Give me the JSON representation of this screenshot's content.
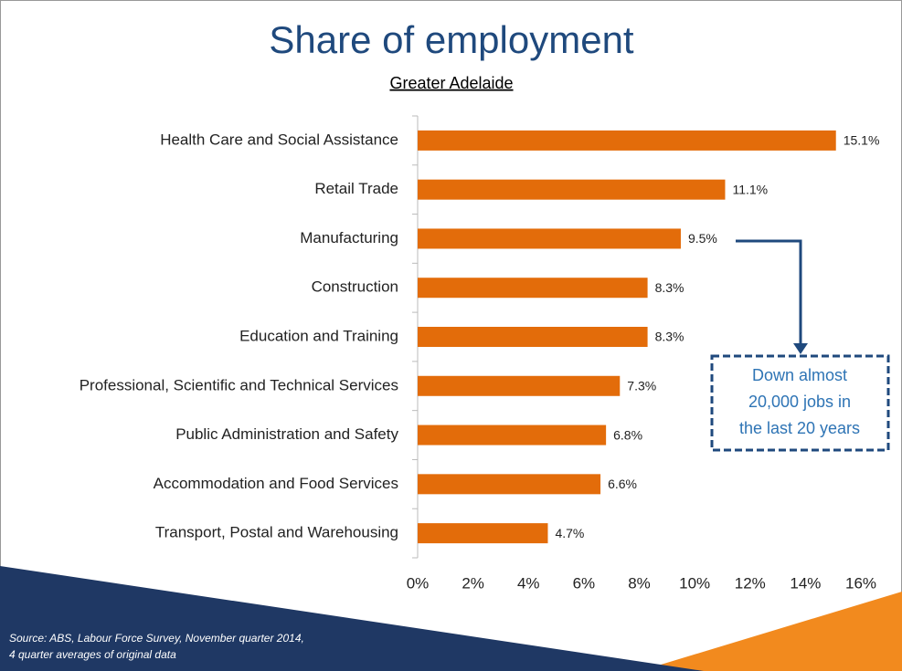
{
  "chart_data": {
    "type": "hbar",
    "title": "Share of employment",
    "subtitle": "Greater Adelaide",
    "categories": [
      "Health Care and Social Assistance",
      "Retail Trade",
      "Manufacturing",
      "Construction",
      "Education and Training",
      "Professional, Scientific and Technical Services",
      "Public Administration and Safety",
      "Accommodation and Food Services",
      "Transport, Postal and Warehousing"
    ],
    "values": [
      15.1,
      11.1,
      9.5,
      8.3,
      8.3,
      7.3,
      6.8,
      6.6,
      4.7
    ],
    "value_labels": [
      "15.1%",
      "11.1%",
      "9.5%",
      "8.3%",
      "8.3%",
      "7.3%",
      "6.8%",
      "6.6%",
      "4.7%"
    ],
    "color": "#e36c0a",
    "xlim": [
      0,
      16
    ],
    "xticks": [
      {
        "value": 0,
        "label": "0%"
      },
      {
        "value": 2,
        "label": "2%"
      },
      {
        "value": 4,
        "label": "4%"
      },
      {
        "value": 6,
        "label": "6%"
      },
      {
        "value": 8,
        "label": "8%"
      },
      {
        "value": 10,
        "label": "10%"
      },
      {
        "value": 12,
        "label": "12%"
      },
      {
        "value": 14,
        "label": "14%"
      },
      {
        "value": 16,
        "label": "16%"
      }
    ],
    "annotation": [
      "Down almost",
      "20,000 jobs in",
      "the last 20 years"
    ],
    "source": [
      "Source: ABS, Labour Force Survey, November quarter 2014,",
      "4 quarter averages of original data"
    ]
  }
}
